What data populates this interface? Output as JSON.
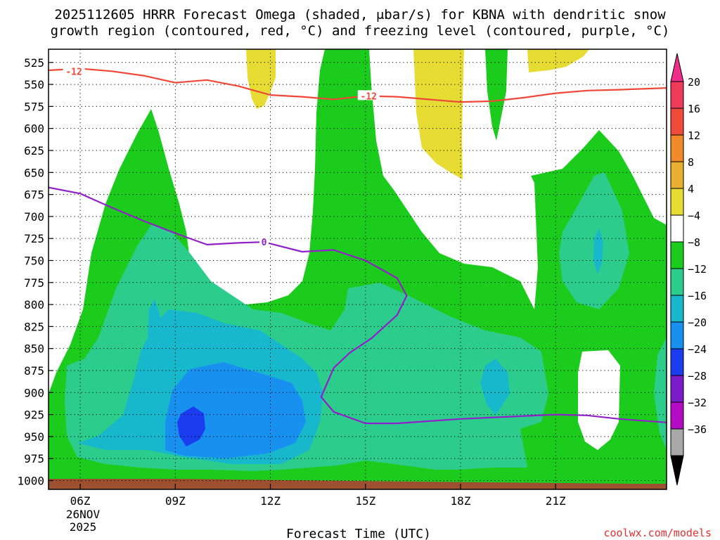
{
  "title_line1": "2025112605 HRRR Forecast Omega (shaded, μbar/s) for KBNA with dendritic snow",
  "title_line2": "growth region (contoured, red, °C) and freezing level (contoured, purple, °C)",
  "credit": "coolwx.com/models",
  "chart_data": {
    "type": "contour",
    "title": "2025112605 HRRR Forecast Omega (shaded, μbar/s) for KBNA with dendritic snow growth region (contoured, red, °C) and freezing level (contoured, purple, °C)",
    "xlabel": "Forecast Time (UTC)",
    "ylabel": "",
    "x_start_label": "26NOV",
    "x_start_year": "2025",
    "xlim_hours": [
      5,
      24.5
    ],
    "ylim": [
      1010,
      510
    ],
    "x_ticks": [
      {
        "hour": 6,
        "label": "06Z"
      },
      {
        "hour": 9,
        "label": "09Z"
      },
      {
        "hour": 12,
        "label": "12Z"
      },
      {
        "hour": 15,
        "label": "15Z"
      },
      {
        "hour": 18,
        "label": "18Z"
      },
      {
        "hour": 21,
        "label": "21Z"
      }
    ],
    "y_ticks": [
      525,
      550,
      575,
      600,
      625,
      650,
      675,
      700,
      725,
      750,
      775,
      800,
      825,
      850,
      875,
      900,
      925,
      950,
      975,
      1000
    ],
    "grid": true,
    "colorbar": {
      "labels": [
        "20",
        "16",
        "12",
        "8",
        "4",
        "−4",
        "−8",
        "−12",
        "−16",
        "−20",
        "−24",
        "−28",
        "−32",
        "−36"
      ],
      "colors": [
        "#f03a5a",
        "#f04a3a",
        "#f08a2a",
        "#e8b030",
        "#e6dc34",
        "#ffffff",
        "#1ccc1c",
        "#2ccc8c",
        "#18b8cc",
        "#1890f0",
        "#1c3cf0",
        "#7a1cc8",
        "#b40cc4",
        "#a8a8a8"
      ],
      "top_color": "#f02c8c",
      "bottom_color": "#000000"
    },
    "contours": [
      {
        "value_label": "-12",
        "color": "#f04838",
        "labels_at": [
          [
            5.8,
            535
          ],
          [
            15.1,
            563
          ]
        ],
        "points": [
          [
            5,
            534
          ],
          [
            6,
            532
          ],
          [
            7,
            535
          ],
          [
            8,
            540
          ],
          [
            9,
            548
          ],
          [
            10,
            545
          ],
          [
            11,
            552
          ],
          [
            12,
            562
          ],
          [
            13,
            564
          ],
          [
            14,
            567
          ],
          [
            15,
            563
          ],
          [
            16,
            564
          ],
          [
            17,
            567
          ],
          [
            18,
            570
          ],
          [
            19,
            569
          ],
          [
            20,
            565
          ],
          [
            21,
            560
          ],
          [
            22,
            557
          ],
          [
            23,
            556
          ],
          [
            24.5,
            554
          ]
        ]
      },
      {
        "value_label": "0",
        "color": "#9020c8",
        "labels_at": [
          [
            11.8,
            729
          ]
        ],
        "points": [
          [
            5,
            667
          ],
          [
            6,
            674
          ],
          [
            7,
            690
          ],
          [
            8,
            705
          ],
          [
            9,
            719
          ],
          [
            10,
            732
          ],
          [
            11,
            730
          ],
          [
            11.8,
            729
          ],
          [
            13,
            740
          ],
          [
            14,
            738
          ],
          [
            15,
            750
          ],
          [
            16,
            770
          ],
          [
            16.3,
            790
          ],
          [
            16,
            812
          ],
          [
            15.2,
            838
          ],
          [
            14.5,
            855
          ],
          [
            14,
            872
          ],
          [
            13.6,
            905
          ],
          [
            14,
            922
          ],
          [
            15,
            935
          ],
          [
            16,
            935
          ],
          [
            18,
            930
          ],
          [
            21,
            925
          ],
          [
            22,
            926
          ],
          [
            23,
            930
          ],
          [
            24.5,
            934
          ]
        ]
      }
    ],
    "ground_color": "#9c5030"
  }
}
